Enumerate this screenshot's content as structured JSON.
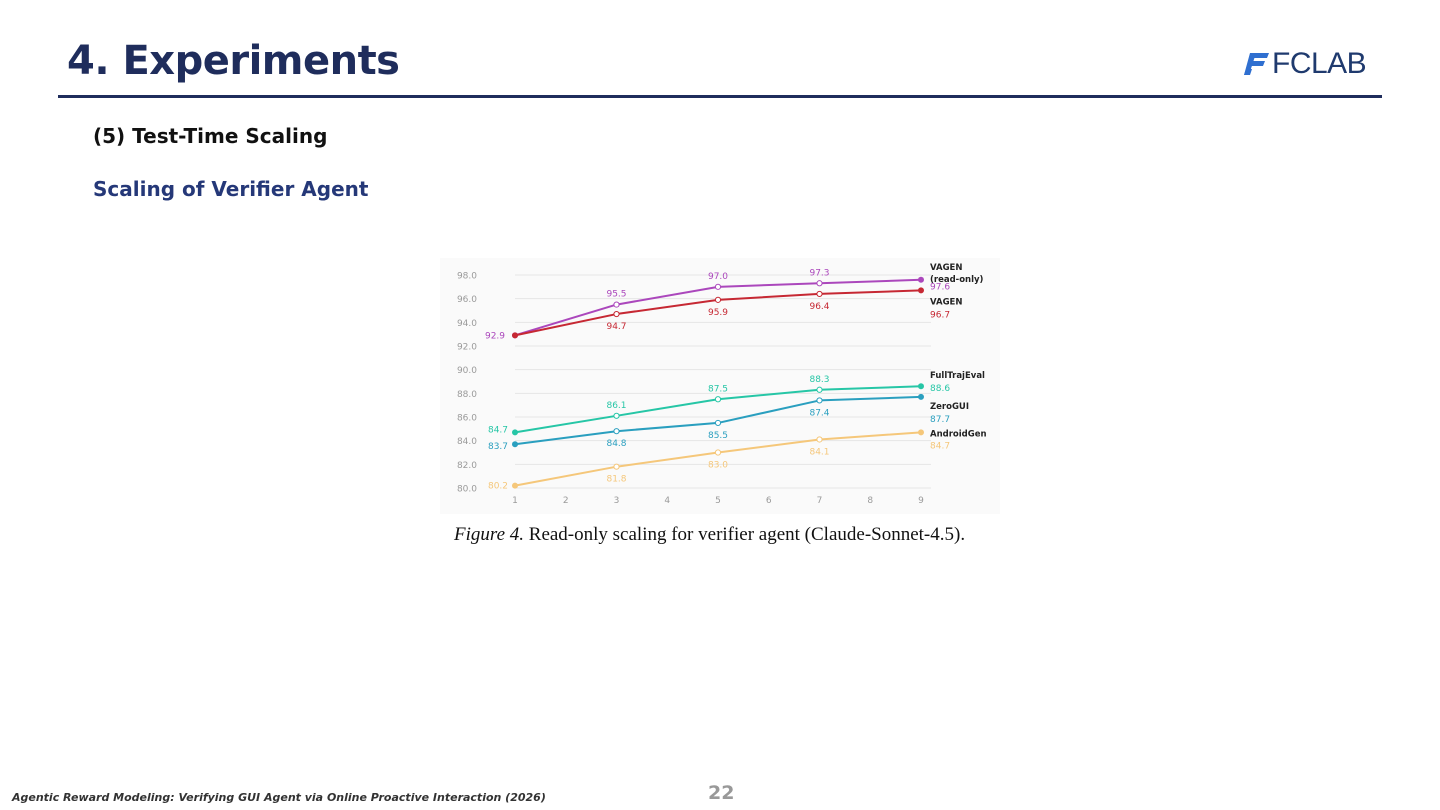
{
  "slide": {
    "title": "4. Experiments",
    "logo_text": "FCLAB",
    "section": "(5) Test-Time Scaling",
    "subsection": "Scaling of Verifier Agent",
    "caption_label": "Figure 4.",
    "caption_text": " Read-only scaling for verifier agent (Claude-Sonnet-4.5).",
    "footer": "Agentic Reward Modeling: Verifying GUI Agent via Online Proactive Interaction (2026)",
    "page_number": "22",
    "colors": {
      "title": "#1f2d5c",
      "subsection": "#253878",
      "rule": "#1f2d5c"
    }
  },
  "chart_data": {
    "type": "line",
    "x": [
      1,
      3,
      5,
      7,
      9
    ],
    "x_ticks": [
      1,
      2,
      3,
      4,
      5,
      6,
      7,
      8,
      9
    ],
    "xlim": [
      1,
      9
    ],
    "ylim": [
      80,
      98
    ],
    "y_ticks": [
      "80.0",
      "82.0",
      "84.0",
      "86.0",
      "88.0",
      "90.0",
      "92.0",
      "94.0",
      "96.0",
      "98.0"
    ],
    "grid": true,
    "legend": "right-end labels",
    "series": [
      {
        "name": "VAGEN (read-only)",
        "color": "#ab47bc",
        "values": [
          92.9,
          95.5,
          97.0,
          97.3,
          97.6
        ],
        "labels": [
          "92.9",
          "95.5",
          "97.0",
          "97.3",
          "97.6"
        ]
      },
      {
        "name": "VAGEN",
        "color": "#c62833",
        "values": [
          92.9,
          94.7,
          95.9,
          96.4,
          96.7
        ],
        "labels": [
          "",
          "94.7",
          "95.9",
          "96.4",
          "96.7"
        ]
      },
      {
        "name": "FullTrajEval",
        "color": "#26c6a6",
        "values": [
          84.7,
          86.1,
          87.5,
          88.3,
          88.6
        ],
        "labels": [
          "84.7",
          "86.1",
          "87.5",
          "88.3",
          "88.6"
        ]
      },
      {
        "name": "ZeroGUI",
        "color": "#2a9fbf",
        "values": [
          83.7,
          84.8,
          85.5,
          87.4,
          87.7
        ],
        "labels": [
          "83.7",
          "84.8",
          "85.5",
          "87.4",
          "87.7"
        ]
      },
      {
        "name": "AndroidGen",
        "color": "#f5c77a",
        "values": [
          80.2,
          81.8,
          83.0,
          84.1,
          84.7
        ],
        "labels": [
          "80.2",
          "81.8",
          "83.0",
          "84.1",
          "84.7"
        ]
      }
    ]
  }
}
